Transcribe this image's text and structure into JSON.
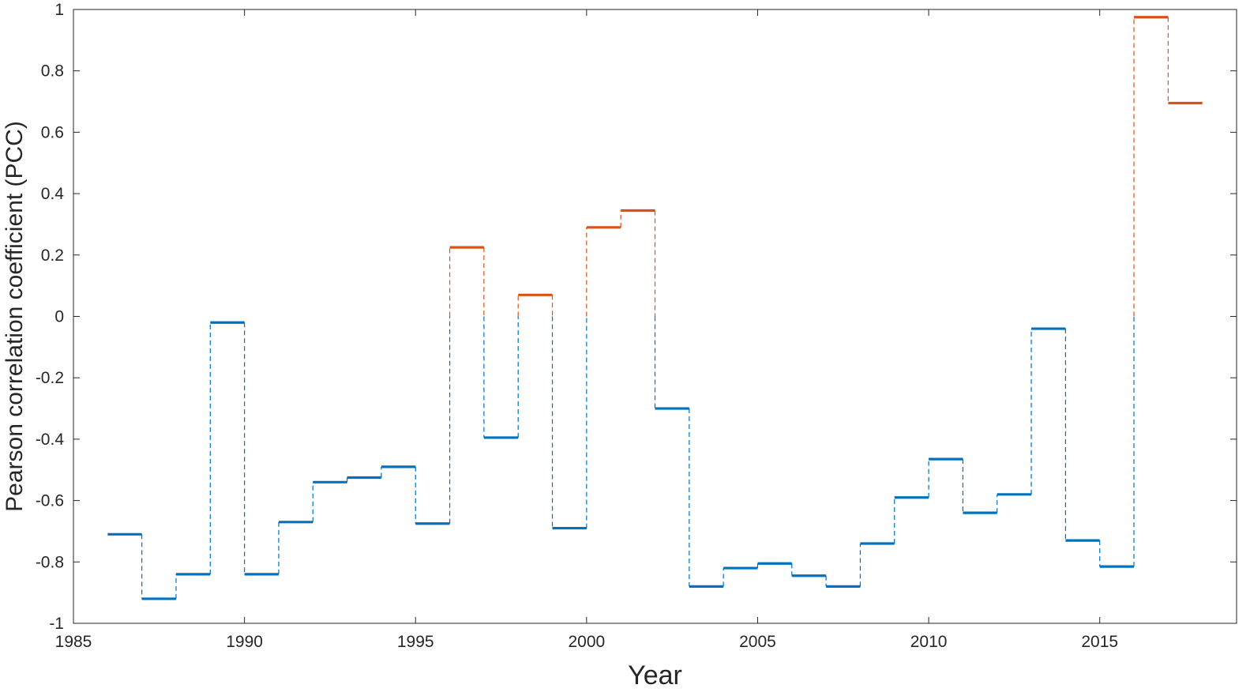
{
  "chart_data": {
    "type": "line",
    "xlabel": "Year",
    "ylabel": "Pearson correlation coefficient (PCC)",
    "xlim": [
      1985,
      2019
    ],
    "ylim": [
      -1,
      1
    ],
    "x_ticks": [
      1985,
      1990,
      1995,
      2000,
      2005,
      2010,
      2015
    ],
    "y_ticks": [
      -1,
      -0.8,
      -0.6,
      -0.4,
      -0.2,
      0,
      0.2,
      0.4,
      0.6,
      0.8,
      1
    ],
    "x_tick_labels": [
      "1985",
      "1990",
      "1995",
      "2000",
      "2005",
      "2010",
      "2015"
    ],
    "y_tick_labels": [
      "-1",
      "-0.8",
      "-0.6",
      "-0.4",
      "-0.2",
      "0",
      "0.2",
      "0.4",
      "0.6",
      "0.8",
      "1"
    ],
    "grid": false,
    "style": "step",
    "colors": {
      "negative": "#0072BD",
      "positive": "#D95319"
    },
    "steps": [
      {
        "start": 1986,
        "end": 1987,
        "value": -0.71
      },
      {
        "start": 1987,
        "end": 1988,
        "value": -0.92
      },
      {
        "start": 1988,
        "end": 1989,
        "value": -0.84
      },
      {
        "start": 1989,
        "end": 1990,
        "value": -0.02
      },
      {
        "start": 1990,
        "end": 1991,
        "value": -0.84
      },
      {
        "start": 1991,
        "end": 1992,
        "value": -0.67
      },
      {
        "start": 1992,
        "end": 1993,
        "value": -0.54
      },
      {
        "start": 1993,
        "end": 1994,
        "value": -0.525
      },
      {
        "start": 1994,
        "end": 1995,
        "value": -0.49
      },
      {
        "start": 1995,
        "end": 1996,
        "value": -0.675
      },
      {
        "start": 1996,
        "end": 1997,
        "value": 0.225
      },
      {
        "start": 1997,
        "end": 1998,
        "value": -0.395
      },
      {
        "start": 1998,
        "end": 1999,
        "value": 0.07
      },
      {
        "start": 1999,
        "end": 2000,
        "value": -0.69
      },
      {
        "start": 2000,
        "end": 2001,
        "value": 0.29
      },
      {
        "start": 2001,
        "end": 2002,
        "value": 0.345
      },
      {
        "start": 2002,
        "end": 2003,
        "value": -0.3
      },
      {
        "start": 2003,
        "end": 2004,
        "value": -0.88
      },
      {
        "start": 2004,
        "end": 2005,
        "value": -0.82
      },
      {
        "start": 2005,
        "end": 2006,
        "value": -0.805
      },
      {
        "start": 2006,
        "end": 2007,
        "value": -0.845
      },
      {
        "start": 2007,
        "end": 2008,
        "value": -0.88
      },
      {
        "start": 2008,
        "end": 2009,
        "value": -0.74
      },
      {
        "start": 2009,
        "end": 2010,
        "value": -0.59
      },
      {
        "start": 2010,
        "end": 2011,
        "value": -0.465
      },
      {
        "start": 2011,
        "end": 2012,
        "value": -0.64
      },
      {
        "start": 2012,
        "end": 2013,
        "value": -0.58
      },
      {
        "start": 2013,
        "end": 2014,
        "value": -0.04
      },
      {
        "start": 2014,
        "end": 2015,
        "value": -0.73
      },
      {
        "start": 2015,
        "end": 2016,
        "value": -0.815
      },
      {
        "start": 2016,
        "end": 2017,
        "value": 0.975
      },
      {
        "start": 2017,
        "end": 2018,
        "value": 0.695
      }
    ]
  }
}
